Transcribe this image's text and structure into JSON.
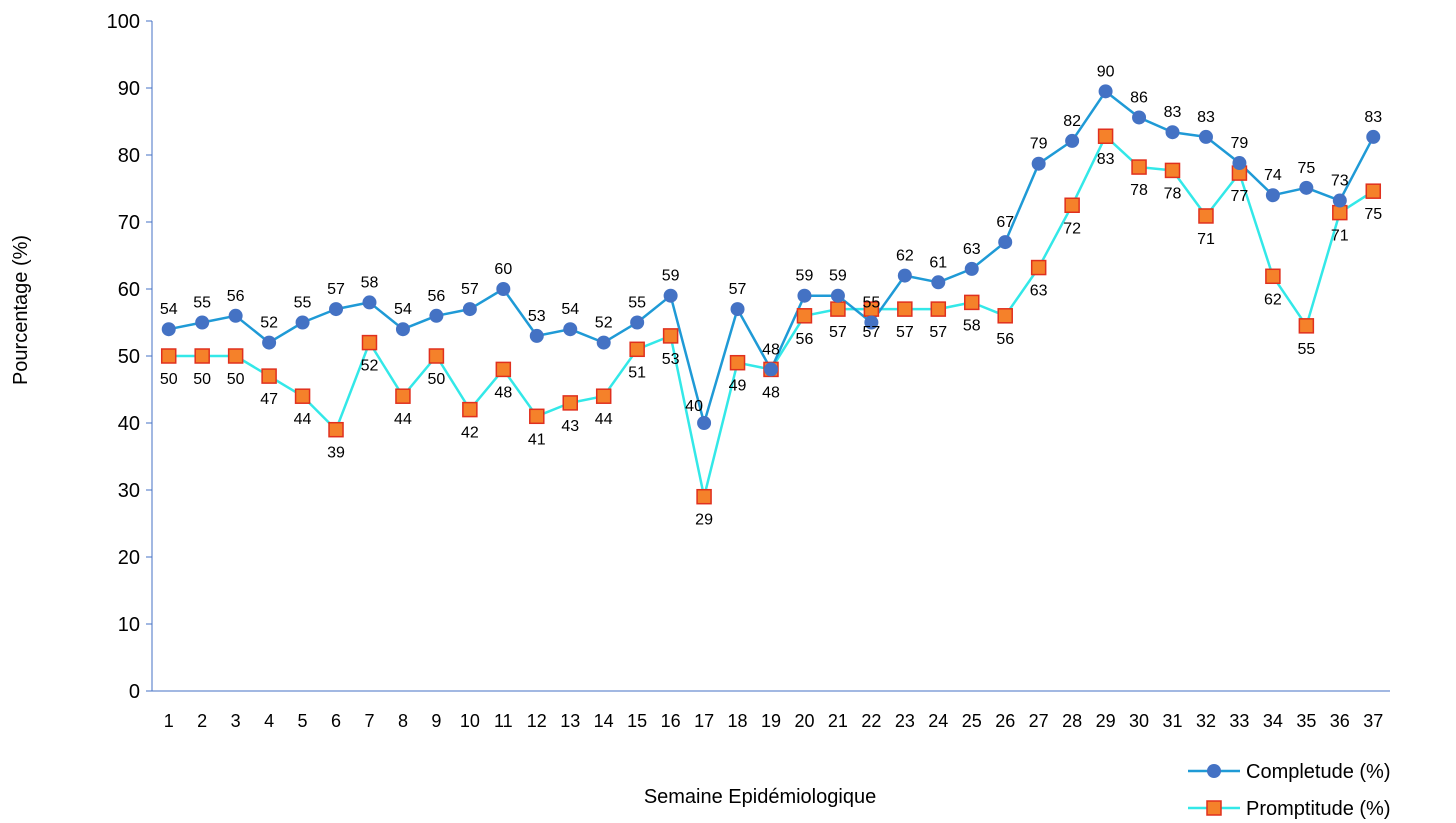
{
  "chart_data": {
    "type": "line",
    "title": "",
    "xlabel": "Semaine Epidémiologique",
    "ylabel": "Pourcentage (%)",
    "ylim": [
      0,
      100
    ],
    "yticks": [
      0,
      10,
      20,
      30,
      40,
      50,
      60,
      70,
      80,
      90,
      100
    ],
    "grid": false,
    "legend": "bottom-right",
    "x": [
      1,
      2,
      3,
      4,
      5,
      6,
      7,
      8,
      9,
      10,
      11,
      12,
      13,
      14,
      15,
      16,
      17,
      18,
      19,
      20,
      21,
      22,
      23,
      24,
      25,
      26,
      27,
      28,
      29,
      30,
      31,
      32,
      33,
      34,
      35,
      36,
      37
    ],
    "series": [
      {
        "name": "Completude (%)",
        "color": "#1f9ad6",
        "marker_color": "#4472c4",
        "marker": "circle",
        "values": [
          54,
          55,
          56,
          52,
          55,
          57,
          58,
          54,
          56,
          57,
          60,
          53,
          54,
          52,
          55,
          59,
          40,
          57,
          48,
          59,
          59,
          55,
          62,
          61,
          63,
          67,
          78.7,
          82.1,
          89.5,
          85.6,
          83.4,
          82.7,
          78.8,
          74,
          75.1,
          73.2,
          82.7
        ],
        "labels": [
          "54",
          "55",
          "56",
          "52",
          "55",
          "57",
          "58",
          "54",
          "56",
          "57",
          "60",
          "53",
          "54",
          "52",
          "55",
          "59",
          "40",
          "57",
          "48",
          "59",
          "59",
          "55",
          "62",
          "61",
          "63",
          "67",
          "79",
          "82",
          "90",
          "86",
          "83",
          "83",
          "79",
          "74",
          "75",
          "73",
          "83"
        ],
        "label_pos": [
          "above",
          "above",
          "above",
          "above",
          "above",
          "above",
          "above",
          "above",
          "above",
          "above",
          "above",
          "above",
          "above",
          "above",
          "above",
          "above",
          "left",
          "above",
          "above",
          "above",
          "above",
          "above",
          "above",
          "above",
          "above",
          "above",
          "above",
          "above",
          "above",
          "above",
          "above",
          "above",
          "above",
          "above",
          "above",
          "above",
          "above"
        ]
      },
      {
        "name": "Promptitude (%)",
        "color": "#33e8e8",
        "marker_color": "#f5812a",
        "marker_stroke": "#e0301e",
        "marker": "square",
        "values": [
          50,
          50,
          50,
          47,
          44,
          39,
          52,
          44,
          50,
          42,
          48,
          41,
          43,
          44,
          51,
          53,
          29,
          49,
          48,
          56,
          57,
          57,
          57,
          57,
          58,
          56,
          63.2,
          72.5,
          82.8,
          78.2,
          77.7,
          70.9,
          77.3,
          61.9,
          54.5,
          71.4,
          74.6
        ],
        "labels": [
          "50",
          "50",
          "50",
          "47",
          "44",
          "39",
          "52",
          "44",
          "50",
          "42",
          "48",
          "41",
          "43",
          "44",
          "51",
          "53",
          "29",
          "49",
          "48",
          "56",
          "57",
          "57",
          "57",
          "57",
          "58",
          "56",
          "63",
          "72",
          "83",
          "78",
          "78",
          "71",
          "77",
          "62",
          "55",
          "71",
          "75"
        ],
        "label_pos": [
          "below",
          "below",
          "below",
          "below",
          "below",
          "below",
          "below",
          "below",
          "below",
          "below",
          "below",
          "below",
          "below",
          "below",
          "below",
          "below",
          "below",
          "below",
          "below",
          "below",
          "below",
          "below",
          "below",
          "below",
          "below",
          "below",
          "below",
          "below",
          "below",
          "below",
          "below",
          "below",
          "below",
          "below",
          "below",
          "below",
          "below"
        ]
      }
    ]
  }
}
